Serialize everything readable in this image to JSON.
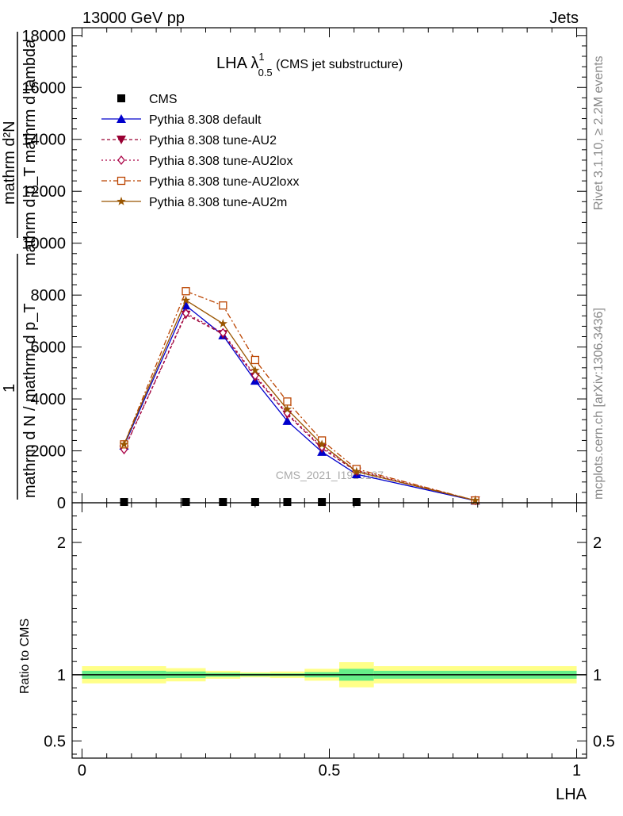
{
  "header": {
    "energy_label": "13000 GeV pp",
    "process_label": "Jets"
  },
  "side": {
    "rivet_label": "Rivet 3.1.10, ≥ 2.2M events",
    "mcplots_label": "mcplots.cern.ch [arXiv:1306.3436]"
  },
  "chart_data": {
    "type": "line",
    "title": {
      "prefix": "LHA λ",
      "superscript": "1",
      "subscript": "0.5",
      "suffix": " (CMS jet substructure)"
    },
    "watermark": "CMS_2021_I1920187",
    "ylabel_lines": [
      "mathrm d²N",
      "mathrm d p_T mathrm d lambda",
      "1",
      "mathrm d N / mathrm d p_T"
    ],
    "xlabel": "LHA",
    "xlim": [
      -0.02,
      1.02
    ],
    "ylim": [
      0,
      18300
    ],
    "x_ticks": [
      {
        "value": 0,
        "label": "0"
      },
      {
        "value": 0.5,
        "label": "0.5"
      },
      {
        "value": 1,
        "label": "1"
      }
    ],
    "y_ticks": [
      {
        "value": 0,
        "label": "0"
      },
      {
        "value": 2000,
        "label": "2000"
      },
      {
        "value": 4000,
        "label": "4000"
      },
      {
        "value": 6000,
        "label": "6000"
      },
      {
        "value": 8000,
        "label": "8000"
      },
      {
        "value": 10000,
        "label": "10000"
      },
      {
        "value": 12000,
        "label": "12000"
      },
      {
        "value": 14000,
        "label": "14000"
      },
      {
        "value": 16000,
        "label": "16000"
      },
      {
        "value": 18000,
        "label": "18000"
      }
    ],
    "series": [
      {
        "name": "CMS",
        "color": "#000000",
        "marker": "square-filled",
        "dash": "",
        "x": [
          0.085,
          0.21,
          0.285,
          0.35,
          0.415,
          0.485,
          0.555
        ],
        "y": [
          30,
          30,
          30,
          30,
          30,
          30,
          30
        ]
      },
      {
        "name": "Pythia 8.308 default",
        "color": "#0000cc",
        "marker": "triangle-up-filled",
        "dash": "",
        "x": [
          0.085,
          0.21,
          0.285,
          0.35,
          0.415,
          0.485,
          0.555,
          0.795
        ],
        "y": [
          2200,
          7600,
          6450,
          4700,
          3150,
          1960,
          1100,
          80
        ]
      },
      {
        "name": "Pythia 8.308 tune-AU2",
        "color": "#990033",
        "marker": "triangle-down-filled",
        "dash": "4,3",
        "x": [
          0.085,
          0.21,
          0.285,
          0.35,
          0.415,
          0.485,
          0.555,
          0.795
        ],
        "y": [
          2050,
          7250,
          6500,
          4850,
          3400,
          2100,
          1200,
          90
        ]
      },
      {
        "name": "Pythia 8.308 tune-AU2lox",
        "color": "#aa0044",
        "marker": "diamond-open",
        "dash": "2,3",
        "x": [
          0.085,
          0.21,
          0.285,
          0.35,
          0.415,
          0.485,
          0.555,
          0.795
        ],
        "y": [
          2050,
          7300,
          6550,
          4900,
          3450,
          2150,
          1250,
          90
        ]
      },
      {
        "name": "Pythia 8.308 tune-AU2loxx",
        "color": "#bb4400",
        "marker": "square-open",
        "dash": "7,3,2,3",
        "x": [
          0.085,
          0.21,
          0.285,
          0.35,
          0.415,
          0.485,
          0.555,
          0.795
        ],
        "y": [
          2250,
          8150,
          7600,
          5500,
          3900,
          2400,
          1300,
          90
        ]
      },
      {
        "name": "Pythia 8.308 tune-AU2m",
        "color": "#995500",
        "marker": "star",
        "dash": "",
        "x": [
          0.085,
          0.21,
          0.285,
          0.35,
          0.415,
          0.485,
          0.555,
          0.795
        ],
        "y": [
          2250,
          7800,
          6900,
          5100,
          3600,
          2250,
          1200,
          90
        ]
      }
    ],
    "ratio": {
      "ylabel": "Ratio to CMS",
      "ylim": [
        0.37,
        2.3
      ],
      "y_ticks": [
        {
          "value": 0.5,
          "label": "0.5"
        },
        {
          "value": 1,
          "label": "1"
        },
        {
          "value": 2,
          "label": "2"
        }
      ],
      "reference": 1,
      "bins": [
        0,
        0.17,
        0.25,
        0.32,
        0.38,
        0.45,
        0.52,
        0.59,
        1.0
      ],
      "band_inner": [
        0.03,
        0.025,
        0.015,
        0.01,
        0.01,
        0.02,
        0.045,
        0.03
      ],
      "band_outer": [
        0.065,
        0.05,
        0.03,
        0.02,
        0.025,
        0.045,
        0.095,
        0.065
      ]
    },
    "colors": {
      "band_inner": "#66ee88",
      "band_outer": "#ffff88"
    }
  }
}
